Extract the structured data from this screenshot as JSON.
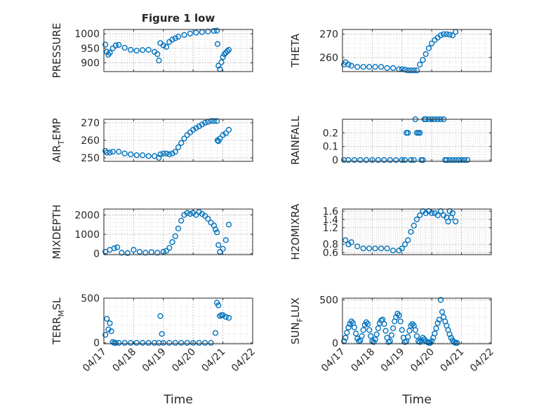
{
  "figure": {
    "title": "Figure 1 low",
    "marker_color": "#0072BD"
  },
  "chart_data": [
    {
      "type": "scatter",
      "name": "PRESSURE",
      "ylabel": "PRESSURE",
      "ylabel_sub": "",
      "ylabel_tail": "",
      "title": "Figure 1 low",
      "xlabel": "",
      "ylim": [
        870,
        1015
      ],
      "yticks": [
        900,
        950,
        1000
      ],
      "ytick_labels": [
        "900",
        "950",
        "1000"
      ],
      "xlim": [
        "04/17",
        "04/22"
      ],
      "xticks": [
        "04/17",
        "04/18",
        "04/19",
        "04/20",
        "04/21",
        "04/22"
      ],
      "show_xticklabels": false,
      "grid": true,
      "x": [
        0.05,
        0.1,
        0.15,
        0.2,
        0.3,
        0.4,
        0.5,
        0.7,
        0.9,
        1.1,
        1.3,
        1.5,
        1.7,
        1.8,
        1.85,
        1.9,
        2.0,
        2.1,
        2.2,
        2.3,
        2.4,
        2.5,
        2.7,
        2.9,
        3.1,
        3.3,
        3.5,
        3.7,
        3.8,
        3.82,
        3.85,
        3.9,
        3.95,
        4.0,
        4.05,
        4.1,
        4.15,
        4.2
      ],
      "y": [
        963,
        938,
        928,
        935,
        950,
        960,
        962,
        952,
        945,
        942,
        944,
        945,
        938,
        930,
        908,
        968,
        960,
        955,
        972,
        980,
        985,
        990,
        996,
        1001,
        1004,
        1006,
        1008,
        1010,
        1011,
        965,
        890,
        878,
        902,
        920,
        930,
        935,
        940,
        945
      ]
    },
    {
      "type": "scatter",
      "name": "THETA",
      "ylabel": "THETA",
      "ylabel_sub": "",
      "ylabel_tail": "",
      "xlabel": "",
      "ylim": [
        254,
        272
      ],
      "yticks": [
        260,
        270
      ],
      "ytick_labels": [
        "260",
        "270"
      ],
      "xlim": [
        "04/17",
        "04/22"
      ],
      "xticks": [
        "04/17",
        "04/18",
        "04/19",
        "04/20",
        "04/21",
        "04/22"
      ],
      "show_xticklabels": false,
      "grid": true,
      "x": [
        0.05,
        0.1,
        0.2,
        0.3,
        0.5,
        0.7,
        0.9,
        1.1,
        1.3,
        1.5,
        1.7,
        1.9,
        2.0,
        2.1,
        2.2,
        2.3,
        2.4,
        2.5,
        2.6,
        2.7,
        2.8,
        2.9,
        3.0,
        3.1,
        3.2,
        3.3,
        3.4,
        3.5,
        3.6,
        3.7,
        3.8
      ],
      "y": [
        257,
        258,
        257,
        256.5,
        256,
        256,
        256,
        256,
        256,
        255.5,
        255.5,
        255,
        255,
        254.8,
        254.5,
        254.5,
        254.5,
        254.5,
        257,
        259,
        261.5,
        264,
        266,
        267.5,
        268.5,
        269.5,
        270,
        270,
        269.8,
        269.5,
        271
      ]
    },
    {
      "type": "scatter",
      "name": "AIR_TEMP",
      "ylabel": "AIR",
      "ylabel_sub": "T",
      "ylabel_tail": "EMP",
      "xlabel": "",
      "ylim": [
        248,
        272
      ],
      "yticks": [
        250,
        260,
        270
      ],
      "ytick_labels": [
        "250",
        "260",
        "270"
      ],
      "xlim": [
        "04/17",
        "04/22"
      ],
      "xticks": [
        "04/17",
        "04/18",
        "04/19",
        "04/20",
        "04/21",
        "04/22"
      ],
      "show_xticklabels": false,
      "grid": true,
      "x": [
        0.05,
        0.1,
        0.2,
        0.3,
        0.5,
        0.7,
        0.9,
        1.1,
        1.3,
        1.5,
        1.7,
        1.85,
        1.9,
        2.0,
        2.1,
        2.2,
        2.3,
        2.4,
        2.5,
        2.6,
        2.7,
        2.8,
        2.9,
        3.0,
        3.1,
        3.2,
        3.3,
        3.4,
        3.5,
        3.6,
        3.7,
        3.8,
        3.82,
        3.85,
        3.9,
        4.0,
        4.1,
        4.2
      ],
      "y": [
        254,
        253,
        253,
        253.5,
        253.5,
        252.5,
        252,
        251.5,
        251.5,
        251,
        251,
        250,
        252,
        252.5,
        252.5,
        252,
        252.5,
        253.5,
        256,
        258.5,
        261,
        263,
        264.5,
        266,
        267,
        268,
        269,
        270,
        270.5,
        271,
        271,
        271,
        260,
        259.5,
        261,
        263,
        264,
        266
      ]
    },
    {
      "type": "scatter",
      "name": "RAINFALL",
      "ylabel": "RAINFALL",
      "ylabel_sub": "",
      "ylabel_tail": "",
      "xlabel": "",
      "ylim": [
        -0.01,
        0.3
      ],
      "yticks": [
        0,
        0.1,
        0.2
      ],
      "ytick_labels": [
        "0",
        "0.1",
        "0.2"
      ],
      "xlim": [
        "04/17",
        "04/22"
      ],
      "xticks": [
        "04/17",
        "04/18",
        "04/19",
        "04/20",
        "04/21",
        "04/22"
      ],
      "show_xticklabels": false,
      "grid": true,
      "x": [
        0.05,
        0.2,
        0.4,
        0.6,
        0.8,
        1.0,
        1.2,
        1.4,
        1.6,
        1.8,
        2.0,
        2.1,
        2.15,
        2.2,
        2.3,
        2.4,
        2.45,
        2.5,
        2.55,
        2.6,
        2.65,
        2.7,
        2.75,
        2.8,
        2.9,
        3.0,
        3.1,
        3.2,
        3.3,
        3.4,
        3.45,
        3.5,
        3.6,
        3.7,
        3.8,
        3.9,
        4.0,
        4.1,
        4.2
      ],
      "y": [
        0,
        0,
        0,
        0,
        0,
        0,
        0,
        0,
        0,
        0,
        0,
        0,
        0.2,
        0.2,
        0,
        0,
        0.3,
        0.2,
        0.2,
        0.2,
        0,
        0,
        0.3,
        0.3,
        0.3,
        0.3,
        0.3,
        0.3,
        0.3,
        0.3,
        0,
        0,
        0,
        0,
        0,
        0,
        0,
        0,
        0
      ]
    },
    {
      "type": "scatter",
      "name": "MIXDEPTH",
      "ylabel": "MIXDEPTH",
      "ylabel_sub": "",
      "ylabel_tail": "",
      "xlabel": "",
      "ylim": [
        -50,
        2300
      ],
      "yticks": [
        0,
        1000,
        2000
      ],
      "ytick_labels": [
        "0",
        "1000",
        "2000"
      ],
      "xlim": [
        "04/17",
        "04/22"
      ],
      "xticks": [
        "04/17",
        "04/18",
        "04/19",
        "04/20",
        "04/21",
        "04/22"
      ],
      "show_xticklabels": false,
      "grid": true,
      "x": [
        0.05,
        0.2,
        0.35,
        0.45,
        0.6,
        0.8,
        1.0,
        1.2,
        1.4,
        1.6,
        1.8,
        2.0,
        2.1,
        2.2,
        2.3,
        2.4,
        2.5,
        2.6,
        2.7,
        2.8,
        2.9,
        3.0,
        3.1,
        3.2,
        3.3,
        3.4,
        3.5,
        3.6,
        3.7,
        3.75,
        3.8,
        3.85,
        3.9,
        4.0,
        4.1,
        4.2
      ],
      "y": [
        100,
        200,
        280,
        330,
        50,
        30,
        200,
        100,
        50,
        80,
        50,
        100,
        150,
        300,
        600,
        900,
        1300,
        1700,
        2000,
        2100,
        2050,
        2100,
        2000,
        2150,
        2050,
        1950,
        1800,
        1600,
        1450,
        1250,
        1100,
        450,
        100,
        250,
        700,
        1500
      ]
    },
    {
      "type": "scatter",
      "name": "H2OMIXRA",
      "ylabel": "H2OMIXRA",
      "ylabel_sub": "",
      "ylabel_tail": "",
      "xlabel": "",
      "ylim": [
        0.55,
        1.65
      ],
      "yticks": [
        0.6,
        0.8,
        1.2,
        1.4,
        1.6
      ],
      "ytick_labels": [
        "0.6",
        "0.8",
        "1.2",
        "1.4",
        "1.6"
      ],
      "xlim": [
        "04/17",
        "04/22"
      ],
      "xticks": [
        "04/17",
        "04/18",
        "04/19",
        "04/20",
        "04/21",
        "04/22"
      ],
      "show_xticklabels": false,
      "grid": true,
      "x": [
        0.1,
        0.2,
        0.3,
        0.5,
        0.7,
        0.9,
        1.1,
        1.3,
        1.5,
        1.7,
        1.9,
        2.0,
        2.1,
        2.2,
        2.3,
        2.4,
        2.5,
        2.6,
        2.7,
        2.8,
        2.9,
        3.0,
        3.1,
        3.2,
        3.3,
        3.4,
        3.5,
        3.55,
        3.6,
        3.65,
        3.7,
        3.8
      ],
      "y": [
        0.9,
        0.8,
        0.85,
        0.75,
        0.7,
        0.7,
        0.7,
        0.7,
        0.7,
        0.65,
        0.65,
        0.7,
        0.8,
        0.9,
        1.1,
        1.25,
        1.4,
        1.5,
        1.6,
        1.55,
        1.6,
        1.55,
        1.55,
        1.5,
        1.6,
        1.5,
        1.45,
        1.35,
        1.6,
        1.45,
        1.55,
        1.35
      ]
    },
    {
      "type": "scatter",
      "name": "TERR_MSL",
      "ylabel": "TERR",
      "ylabel_sub": "M",
      "ylabel_tail": "SL",
      "xlabel": "Time",
      "ylim": [
        -10,
        500
      ],
      "yticks": [
        0,
        500
      ],
      "ytick_labels": [
        "0",
        "500"
      ],
      "xlim": [
        "04/17",
        "04/22"
      ],
      "xticks": [
        "04/17",
        "04/18",
        "04/19",
        "04/20",
        "04/21",
        "04/22"
      ],
      "xtick_labels": [
        "04/17",
        "04/18",
        "04/19",
        "04/20",
        "04/21",
        "04/22"
      ],
      "show_xticklabels": true,
      "grid": true,
      "x": [
        0.05,
        0.1,
        0.15,
        0.2,
        0.25,
        0.3,
        0.35,
        0.4,
        0.5,
        0.7,
        0.9,
        1.1,
        1.3,
        1.5,
        1.7,
        1.85,
        1.9,
        1.95,
        2.0,
        2.2,
        2.4,
        2.6,
        2.8,
        3.0,
        3.2,
        3.4,
        3.6,
        3.75,
        3.8,
        3.85,
        3.9,
        3.95,
        4.0,
        4.1,
        4.2
      ],
      "y": [
        90,
        270,
        150,
        220,
        130,
        10,
        0,
        0,
        0,
        0,
        0,
        0,
        0,
        0,
        0,
        0,
        300,
        100,
        0,
        0,
        0,
        0,
        0,
        0,
        0,
        0,
        0,
        110,
        450,
        420,
        300,
        310,
        310,
        290,
        280
      ]
    },
    {
      "type": "scatter",
      "name": "SUN_FLUX",
      "ylabel": "SUN",
      "ylabel_sub": "F",
      "ylabel_tail": "LUX",
      "xlabel": "Time",
      "ylim": [
        -10,
        520
      ],
      "yticks": [
        0,
        500
      ],
      "ytick_labels": [
        "0",
        "500"
      ],
      "xlim": [
        "04/17",
        "04/22"
      ],
      "xticks": [
        "04/17",
        "04/18",
        "04/19",
        "04/20",
        "04/21",
        "04/22"
      ],
      "xtick_labels": [
        "04/17",
        "04/18",
        "04/19",
        "04/20",
        "04/21",
        "04/22"
      ],
      "show_xticklabels": true,
      "grid": true,
      "x": [
        0.05,
        0.1,
        0.15,
        0.2,
        0.25,
        0.3,
        0.35,
        0.4,
        0.45,
        0.5,
        0.55,
        0.6,
        0.65,
        0.7,
        0.75,
        0.8,
        0.85,
        0.9,
        0.95,
        1.0,
        1.05,
        1.1,
        1.15,
        1.2,
        1.25,
        1.3,
        1.35,
        1.4,
        1.45,
        1.5,
        1.55,
        1.6,
        1.65,
        1.7,
        1.75,
        1.8,
        1.85,
        1.9,
        1.95,
        2.0,
        2.05,
        2.1,
        2.15,
        2.2,
        2.25,
        2.3,
        2.35,
        2.4,
        2.45,
        2.5,
        2.55,
        2.6,
        2.65,
        2.7,
        2.75,
        2.8,
        2.85,
        2.9,
        2.95,
        3.0,
        3.05,
        3.1,
        3.15,
        3.2,
        3.25,
        3.3,
        3.35,
        3.4,
        3.45,
        3.5,
        3.55,
        3.6,
        3.65,
        3.7,
        3.75,
        3.8,
        3.85
      ],
      "y": [
        20,
        60,
        120,
        180,
        220,
        250,
        230,
        180,
        110,
        50,
        20,
        30,
        80,
        150,
        210,
        240,
        220,
        150,
        80,
        20,
        10,
        40,
        100,
        170,
        230,
        260,
        270,
        220,
        140,
        60,
        10,
        20,
        90,
        170,
        250,
        300,
        340,
        320,
        250,
        150,
        60,
        10,
        20,
        70,
        140,
        200,
        220,
        200,
        150,
        80,
        20,
        10,
        30,
        60,
        40,
        20,
        10,
        0,
        0,
        20,
        60,
        110,
        170,
        230,
        270,
        500,
        360,
        300,
        250,
        200,
        150,
        100,
        60,
        30,
        10,
        0,
        0
      ]
    }
  ]
}
